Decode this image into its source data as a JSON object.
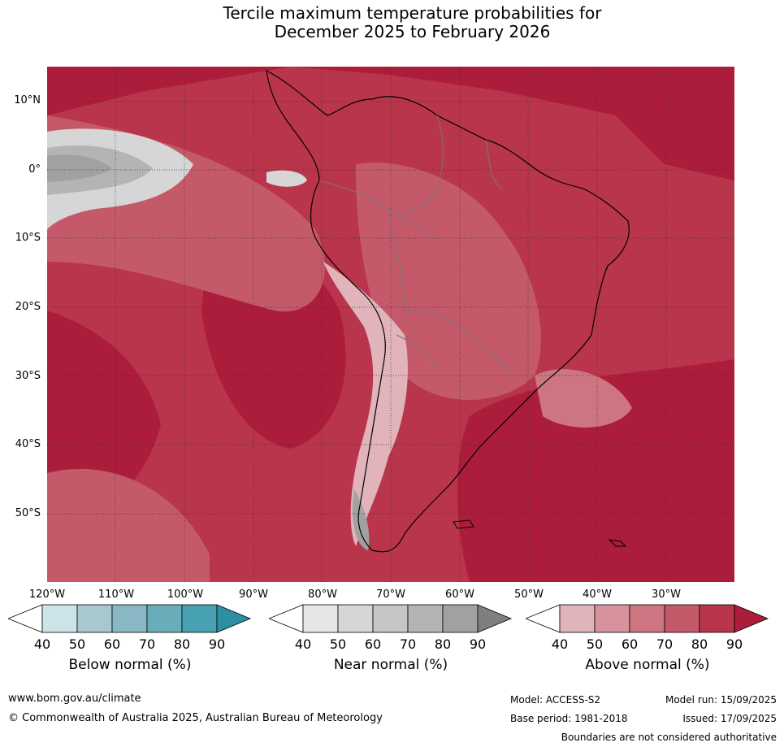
{
  "title_line1": "Tercile maximum temperature probabilities for",
  "title_line2": "December 2025 to February 2026",
  "lat_labels": [
    "10°N",
    "0°",
    "10°S",
    "20°S",
    "30°S",
    "40°S",
    "50°S"
  ],
  "lon_labels": [
    "120°W",
    "110°W",
    "100°W",
    "90°W",
    "80°W",
    "70°W",
    "60°W",
    "50°W",
    "40°W",
    "30°W"
  ],
  "legends": {
    "below": {
      "title": "Below normal (%)",
      "ticks": [
        "40",
        "50",
        "60",
        "70",
        "80",
        "90"
      ],
      "colors": [
        "#ffffff",
        "#cce3e8",
        "#a8c8cf",
        "#89b7c3",
        "#6aadba",
        "#48a1b2",
        "#2d8fa4"
      ]
    },
    "near": {
      "title": "Near normal (%)",
      "ticks": [
        "40",
        "50",
        "60",
        "70",
        "80",
        "90"
      ],
      "colors": [
        "#ffffff",
        "#e6e6e6",
        "#d6d6d6",
        "#c5c5c5",
        "#b4b4b4",
        "#a1a1a1",
        "#7f7f7f"
      ]
    },
    "above": {
      "title": "Above normal (%)",
      "ticks": [
        "40",
        "50",
        "60",
        "70",
        "80",
        "90"
      ],
      "colors": [
        "#ffffff",
        "#e0b4ba",
        "#d6939d",
        "#cd7682",
        "#c45a69",
        "#b9354c",
        "#ac1c3b"
      ]
    }
  },
  "footer": {
    "url": "www.bom.gov.au/climate",
    "copyright": "© Commonwealth of Australia 2025, Australian Bureau of Meteorology",
    "model": "Model: ACCESS-S2",
    "base_period": "Base period: 1981-2018",
    "model_run": "Model run: 15/09/2025",
    "issued": "Issued: 17/09/2025",
    "disclaimer": "Boundaries are not considered authoritative"
  }
}
